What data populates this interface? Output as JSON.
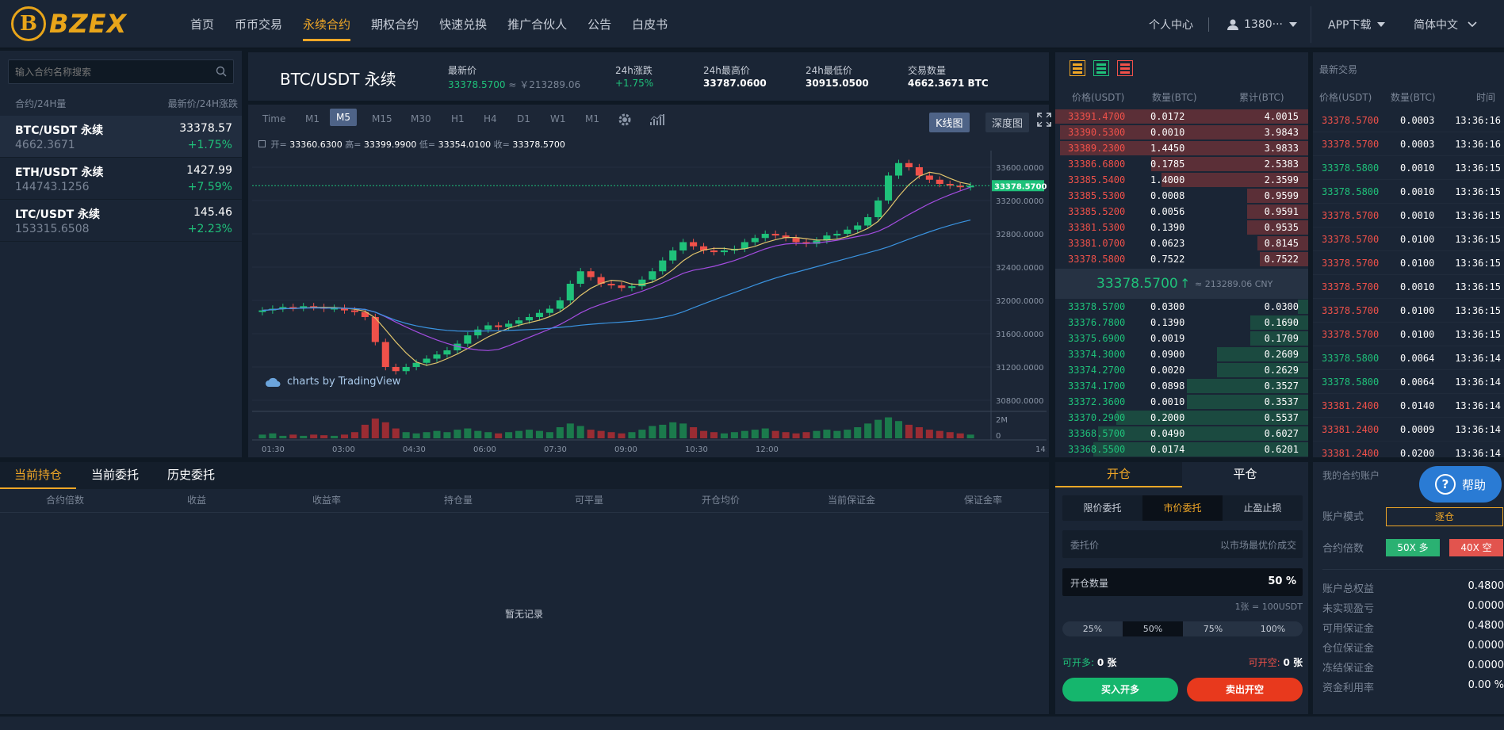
{
  "header": {
    "logo_letter": "B",
    "logo_text": "BZEX",
    "nav": [
      "首页",
      "币币交易",
      "永续合约",
      "期权合约",
      "快速兑换",
      "推广合伙人",
      "公告",
      "白皮书"
    ],
    "active_nav": 2,
    "personal_center": "个人中心",
    "user": "1380···",
    "app_download": "APP下载",
    "language": "简体中文"
  },
  "sidebar": {
    "search_placeholder": "输入合约名称搜索",
    "col_left": "合约/24H量",
    "col_right": "最新价/24H涨跌",
    "items": [
      {
        "name": "BTC/USDT 永续",
        "volume": "4662.3671",
        "price": "33378.57",
        "change": "+1.75%"
      },
      {
        "name": "ETH/USDT 永续",
        "volume": "144743.1256",
        "price": "1427.99",
        "change": "+7.59%"
      },
      {
        "name": "LTC/USDT 永续",
        "volume": "153315.6508",
        "price": "145.46",
        "change": "+2.23%"
      }
    ]
  },
  "ticker": {
    "symbol": "BTC/USDT 永续",
    "last_label": "最新价",
    "last_value": "33378.5700",
    "last_cny": "≈ ￥213289.06",
    "change_label": "24h涨跌",
    "change_value": "+1.75%",
    "high_label": "24h最高价",
    "high_value": "33787.0600",
    "low_label": "24h最低价",
    "low_value": "30915.0500",
    "vol_label": "交易数量",
    "vol_value": "4662.3671 BTC"
  },
  "chart_toolbar": {
    "intervals": [
      "Time",
      "M1",
      "M5",
      "M15",
      "M30",
      "H1",
      "H4",
      "D1",
      "W1",
      "M1"
    ],
    "active_interval": 2,
    "kline": "K线图",
    "depth": "深度图"
  },
  "chart_data": {
    "type": "candlestick",
    "ohlc_open_label": "开=",
    "ohlc_open": "33360.6300",
    "ohlc_high_label": "高=",
    "ohlc_high": "33399.9900",
    "ohlc_low_label": "低=",
    "ohlc_low": "33354.0100",
    "ohlc_close_label": "收=",
    "ohlc_close": "33378.5700",
    "last_price_tag": "33378.5700",
    "y_ticks": [
      "33600.0000",
      "33200.0000",
      "32800.0000",
      "32400.0000",
      "32000.0000",
      "31600.0000",
      "31200.0000",
      "30800.0000"
    ],
    "y_tick_values": [
      33600,
      33200,
      32800,
      32400,
      32000,
      31600,
      31200,
      30800
    ],
    "vol_ticks": [
      "2M",
      "0"
    ],
    "x_ticks": [
      "01:30",
      "03:00",
      "04:30",
      "06:00",
      "07:30",
      "09:00",
      "10:30",
      "12:00",
      "14:"
    ],
    "watermark": "charts by TradingView",
    "closes": [
      31880,
      31900,
      31920,
      31910,
      31930,
      31920,
      31900,
      31910,
      31880,
      31860,
      31800,
      31500,
      31200,
      31150,
      31200,
      31250,
      31300,
      31350,
      31400,
      31480,
      31580,
      31650,
      31700,
      31680,
      31720,
      31760,
      31800,
      31850,
      31900,
      32000,
      32200,
      32350,
      32280,
      32200,
      32180,
      32150,
      32170,
      32250,
      32350,
      32480,
      32600,
      32700,
      32650,
      32600,
      32580,
      32600,
      32620,
      32700,
      32750,
      32800,
      32780,
      32750,
      32700,
      32680,
      32720,
      32780,
      32800,
      32850,
      32900,
      33000,
      33200,
      33500,
      33650,
      33600,
      33500,
      33450,
      33400,
      33380,
      33360,
      33378
    ],
    "volumes": [
      0.3,
      0.4,
      0.2,
      0.3,
      0.2,
      0.3,
      0.25,
      0.2,
      0.3,
      0.5,
      1.1,
      1.6,
      1.3,
      0.8,
      0.5,
      0.4,
      0.5,
      0.6,
      0.5,
      0.7,
      0.8,
      0.6,
      0.5,
      0.4,
      0.5,
      0.6,
      0.7,
      0.6,
      0.5,
      0.9,
      1.2,
      1.0,
      0.7,
      0.6,
      0.5,
      0.4,
      0.5,
      0.7,
      1.0,
      1.1,
      1.3,
      1.2,
      0.9,
      0.6,
      0.5,
      0.4,
      0.5,
      0.6,
      0.7,
      0.8,
      0.6,
      0.5,
      0.4,
      0.5,
      0.6,
      0.7,
      0.6,
      0.7,
      0.9,
      1.2,
      1.5,
      1.7,
      1.4,
      1.1,
      0.9,
      0.7,
      0.6,
      0.5,
      0.4,
      0.3
    ]
  },
  "orderbook": {
    "col_price": "价格(USDT)",
    "col_qty": "数量(BTC)",
    "col_total": "累计(BTC)",
    "asks": [
      [
        "33391.4700",
        "0.0172",
        "4.0015"
      ],
      [
        "33390.5300",
        "0.0010",
        "3.9843"
      ],
      [
        "33389.2300",
        "1.4450",
        "3.9833"
      ],
      [
        "33386.6800",
        "0.1785",
        "2.5383"
      ],
      [
        "33385.5400",
        "1.4000",
        "2.3599"
      ],
      [
        "33385.5300",
        "0.0008",
        "0.9599"
      ],
      [
        "33385.5200",
        "0.0056",
        "0.9591"
      ],
      [
        "33381.5300",
        "0.1390",
        "0.9535"
      ],
      [
        "33381.0700",
        "0.0623",
        "0.8145"
      ],
      [
        "33378.5800",
        "0.7522",
        "0.7522"
      ]
    ],
    "ask_depth": [
      1.0,
      0.98,
      0.98,
      0.62,
      0.58,
      0.24,
      0.24,
      0.24,
      0.2,
      0.19
    ],
    "mid_price": "33378.5700",
    "mid_arrow": "↑",
    "mid_cny": "≈ 213289.06 CNY",
    "bids": [
      [
        "33378.5700",
        "0.0300",
        "0.0300"
      ],
      [
        "33376.7800",
        "0.1390",
        "0.1690"
      ],
      [
        "33375.6900",
        "0.0019",
        "0.1709"
      ],
      [
        "33374.3000",
        "0.0900",
        "0.2609"
      ],
      [
        "33374.2700",
        "0.0020",
        "0.2629"
      ],
      [
        "33374.1700",
        "0.0898",
        "0.3527"
      ],
      [
        "33372.3600",
        "0.0010",
        "0.3537"
      ],
      [
        "33370.2900",
        "0.2000",
        "0.5537"
      ],
      [
        "33368.5700",
        "0.0490",
        "0.6027"
      ],
      [
        "33368.5500",
        "0.0174",
        "0.6201"
      ]
    ],
    "bid_depth": [
      0.04,
      0.23,
      0.23,
      0.36,
      0.36,
      0.48,
      0.48,
      0.76,
      0.83,
      0.85
    ]
  },
  "trades": {
    "title": "最新交易",
    "col_price": "价格(USDT)",
    "col_qty": "数量(BTC)",
    "col_time": "时间",
    "rows": [
      [
        "33378.5700",
        "0.0003",
        "13:36:16",
        "sell"
      ],
      [
        "33378.5700",
        "0.0003",
        "13:36:16",
        "sell"
      ],
      [
        "33378.5800",
        "0.0010",
        "13:36:15",
        "buy"
      ],
      [
        "33378.5800",
        "0.0010",
        "13:36:15",
        "buy"
      ],
      [
        "33378.5700",
        "0.0010",
        "13:36:15",
        "sell"
      ],
      [
        "33378.5700",
        "0.0100",
        "13:36:15",
        "sell"
      ],
      [
        "33378.5700",
        "0.0100",
        "13:36:15",
        "sell"
      ],
      [
        "33378.5700",
        "0.0010",
        "13:36:15",
        "sell"
      ],
      [
        "33378.5700",
        "0.0100",
        "13:36:15",
        "sell"
      ],
      [
        "33378.5700",
        "0.0100",
        "13:36:15",
        "sell"
      ],
      [
        "33378.5800",
        "0.0064",
        "13:36:14",
        "buy"
      ],
      [
        "33378.5800",
        "0.0064",
        "13:36:14",
        "buy"
      ],
      [
        "33381.2400",
        "0.0140",
        "13:36:14",
        "sell"
      ],
      [
        "33381.2400",
        "0.0009",
        "13:36:14",
        "sell"
      ],
      [
        "33381.2400",
        "0.0200",
        "13:36:14",
        "sell"
      ]
    ]
  },
  "positions": {
    "tabs": [
      "当前持仓",
      "当前委托",
      "历史委托"
    ],
    "columns": [
      "合约倍数",
      "收益",
      "收益率",
      "持仓量",
      "可平量",
      "开仓均价",
      "当前保证金",
      "保证金率"
    ],
    "empty": "暂无记录"
  },
  "order_form": {
    "tab_open": "开仓",
    "tab_close": "平仓",
    "types": [
      "限价委托",
      "市价委托",
      "止盈止损"
    ],
    "active_type": 1,
    "price_label": "委托价",
    "price_value": "以市场最优价成交",
    "qty_label": "开仓数量",
    "qty_value": "50 %",
    "contract_note": "1张 = 100USDT",
    "pcts": [
      "25%",
      "50%",
      "75%",
      "100%"
    ],
    "active_pct": 1,
    "can_long_label": "可开多:",
    "can_long": "0 张",
    "can_short_label": "可开空:",
    "can_short": "0 张",
    "buy_btn": "买入开多",
    "sell_btn": "卖出开空"
  },
  "account": {
    "title": "我的合约账户",
    "help": "帮助",
    "mode_label": "账户模式",
    "mode_value": "逐仓",
    "leverage_label": "合约倍数",
    "long_lev": "50X 多",
    "short_lev": "40X 空",
    "rows": [
      [
        "账户总权益",
        "0.4800"
      ],
      [
        "未实现盈亏",
        "0.0000"
      ],
      [
        "可用保证金",
        "0.4800"
      ],
      [
        "仓位保证金",
        "0.0000"
      ],
      [
        "冻结保证金",
        "0.0000"
      ],
      [
        "资金利用率",
        "0.00 %"
      ]
    ]
  },
  "colors": {
    "accent": "#f0a727",
    "green": "#1fc17a",
    "red": "#f0514a",
    "bg": "#0f1924",
    "panel": "#1a2535"
  }
}
